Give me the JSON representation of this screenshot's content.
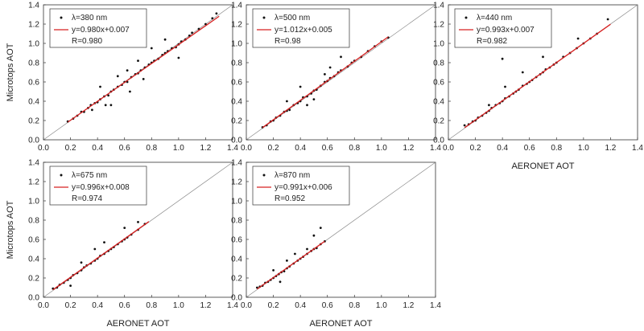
{
  "layout_note_free": true,
  "shared": {
    "xlabel": "AERONET AOT",
    "ylabel": "Microtops AOT",
    "ticks": [
      "0.0",
      "0.2",
      "0.4",
      "0.6",
      "0.8",
      "1.0",
      "1.2",
      "1.4"
    ],
    "point_color": "#111111",
    "fit_color": "#d62020",
    "ref_color": "#888888"
  },
  "chart_data": [
    {
      "type": "scatter",
      "xlabel": "",
      "ylabel": "Microtops AOT",
      "xlim": [
        0,
        1.4
      ],
      "ylim": [
        0,
        1.4
      ],
      "legend": {
        "placement": "top-left",
        "series": "λ=380 nm",
        "fit": "y=0.980x+0.007",
        "r": "R=0.980"
      },
      "fit": {
        "slope": 0.98,
        "intercept": 0.007,
        "xrange": [
          0.18,
          1.3
        ]
      },
      "series": [
        {
          "name": "λ=380 nm",
          "x": [
            0.18,
            0.22,
            0.25,
            0.28,
            0.3,
            0.33,
            0.35,
            0.38,
            0.4,
            0.42,
            0.45,
            0.48,
            0.5,
            0.52,
            0.55,
            0.58,
            0.6,
            0.62,
            0.65,
            0.68,
            0.7,
            0.72,
            0.75,
            0.78,
            0.8,
            0.82,
            0.85,
            0.88,
            0.9,
            0.92,
            0.95,
            0.98,
            1.0,
            1.02,
            1.05,
            1.08,
            1.1,
            1.15,
            1.2,
            1.25,
            1.28,
            0.36,
            0.42,
            0.5,
            0.62,
            0.74,
            0.9,
            1.0,
            0.55,
            0.8,
            0.64,
            0.46,
            0.7
          ],
          "y": [
            0.19,
            0.22,
            0.25,
            0.29,
            0.29,
            0.33,
            0.36,
            0.38,
            0.39,
            0.42,
            0.45,
            0.46,
            0.5,
            0.52,
            0.55,
            0.57,
            0.6,
            0.6,
            0.65,
            0.68,
            0.69,
            0.72,
            0.75,
            0.78,
            0.8,
            0.82,
            0.84,
            0.88,
            0.9,
            0.92,
            0.95,
            0.96,
            0.99,
            1.02,
            1.04,
            1.08,
            1.11,
            1.15,
            1.2,
            1.26,
            1.31,
            0.31,
            0.55,
            0.36,
            0.72,
            0.63,
            1.04,
            0.85,
            0.66,
            0.95,
            0.5,
            0.36,
            0.82
          ]
        }
      ]
    },
    {
      "type": "scatter",
      "xlabel": "",
      "ylabel": "",
      "xlim": [
        0,
        1.4
      ],
      "ylim": [
        0,
        1.4
      ],
      "legend": {
        "placement": "top-left",
        "series": "λ=500 nm",
        "fit": "y=1.012x+0.005",
        "r": "R=0.98"
      },
      "fit": {
        "slope": 1.012,
        "intercept": 0.005,
        "xrange": [
          0.12,
          1.05
        ]
      },
      "series": [
        {
          "name": "λ=500 nm",
          "x": [
            0.12,
            0.15,
            0.18,
            0.2,
            0.22,
            0.25,
            0.28,
            0.3,
            0.32,
            0.35,
            0.38,
            0.4,
            0.42,
            0.45,
            0.48,
            0.5,
            0.52,
            0.55,
            0.58,
            0.6,
            0.62,
            0.65,
            0.68,
            0.7,
            0.75,
            0.78,
            0.8,
            0.85,
            0.9,
            0.95,
            1.0,
            1.05,
            0.3,
            0.4,
            0.5,
            0.62,
            0.7,
            0.45,
            0.58
          ],
          "y": [
            0.13,
            0.15,
            0.19,
            0.2,
            0.23,
            0.25,
            0.29,
            0.3,
            0.31,
            0.36,
            0.38,
            0.4,
            0.44,
            0.45,
            0.48,
            0.51,
            0.52,
            0.56,
            0.6,
            0.61,
            0.64,
            0.66,
            0.7,
            0.72,
            0.76,
            0.8,
            0.82,
            0.86,
            0.92,
            0.97,
            1.02,
            1.06,
            0.4,
            0.55,
            0.42,
            0.75,
            0.86,
            0.36,
            0.68
          ]
        }
      ]
    },
    {
      "type": "scatter",
      "xlabel": "AERONET AOT",
      "ylabel": "",
      "xlim": [
        0,
        1.4
      ],
      "ylim": [
        0,
        1.4
      ],
      "legend": {
        "placement": "top-left",
        "series": "λ=440 nm",
        "fit": "y=0.993x+0.007",
        "r": "R=0.982"
      },
      "fit": {
        "slope": 0.993,
        "intercept": 0.007,
        "xrange": [
          0.12,
          1.2
        ]
      },
      "series": [
        {
          "name": "λ=440 nm",
          "x": [
            0.12,
            0.15,
            0.18,
            0.2,
            0.22,
            0.25,
            0.28,
            0.3,
            0.32,
            0.35,
            0.38,
            0.4,
            0.42,
            0.45,
            0.48,
            0.5,
            0.52,
            0.55,
            0.58,
            0.6,
            0.62,
            0.65,
            0.68,
            0.7,
            0.72,
            0.75,
            0.78,
            0.8,
            0.85,
            0.9,
            0.95,
            1.0,
            1.05,
            1.1,
            1.18,
            0.3,
            0.42,
            0.55,
            0.7,
            0.96,
            0.4
          ],
          "y": [
            0.15,
            0.16,
            0.19,
            0.2,
            0.23,
            0.25,
            0.28,
            0.3,
            0.33,
            0.36,
            0.38,
            0.4,
            0.43,
            0.45,
            0.48,
            0.5,
            0.52,
            0.56,
            0.58,
            0.6,
            0.62,
            0.65,
            0.68,
            0.7,
            0.73,
            0.75,
            0.78,
            0.8,
            0.86,
            0.9,
            0.95,
            1.0,
            1.05,
            1.1,
            1.25,
            0.36,
            0.55,
            0.7,
            0.86,
            1.05,
            0.84
          ]
        }
      ]
    },
    {
      "type": "scatter",
      "xlabel": "",
      "ylabel": "Microtops AOT",
      "xlim": [
        0,
        1.4
      ],
      "ylim": [
        0,
        1.4
      ],
      "legend": {
        "placement": "top-left",
        "series": "λ=675 nm",
        "fit": "y=0.996x+0.008",
        "r": "R=0.974"
      },
      "fit": {
        "slope": 0.996,
        "intercept": 0.008,
        "xrange": [
          0.07,
          0.78
        ]
      },
      "series": [
        {
          "name": "λ=675 nm",
          "x": [
            0.07,
            0.1,
            0.12,
            0.15,
            0.18,
            0.2,
            0.22,
            0.25,
            0.28,
            0.3,
            0.32,
            0.35,
            0.38,
            0.4,
            0.42,
            0.45,
            0.48,
            0.5,
            0.52,
            0.55,
            0.58,
            0.6,
            0.62,
            0.65,
            0.7,
            0.75,
            0.28,
            0.38,
            0.45,
            0.6,
            0.7,
            0.2
          ],
          "y": [
            0.09,
            0.1,
            0.13,
            0.15,
            0.18,
            0.2,
            0.23,
            0.25,
            0.28,
            0.31,
            0.33,
            0.35,
            0.38,
            0.4,
            0.43,
            0.45,
            0.48,
            0.5,
            0.52,
            0.55,
            0.58,
            0.6,
            0.62,
            0.65,
            0.7,
            0.76,
            0.36,
            0.5,
            0.57,
            0.72,
            0.78,
            0.12
          ]
        }
      ]
    },
    {
      "type": "scatter",
      "xlabel": "AERONET AOT",
      "ylabel": "",
      "xlim": [
        0,
        1.4
      ],
      "ylim": [
        0,
        1.4
      ],
      "legend": {
        "placement": "top-left",
        "series": "λ=870 nm",
        "fit": "y=0.991x+0.006",
        "r": "R=0.952"
      },
      "fit": {
        "slope": 0.991,
        "intercept": 0.006,
        "xrange": [
          0.08,
          0.58
        ]
      },
      "series": [
        {
          "name": "λ=870 nm",
          "x": [
            0.08,
            0.1,
            0.12,
            0.14,
            0.16,
            0.18,
            0.2,
            0.22,
            0.24,
            0.26,
            0.28,
            0.3,
            0.32,
            0.35,
            0.38,
            0.4,
            0.42,
            0.45,
            0.48,
            0.5,
            0.52,
            0.55,
            0.58,
            0.2,
            0.3,
            0.36,
            0.45,
            0.5,
            0.55,
            0.25
          ],
          "y": [
            0.1,
            0.11,
            0.12,
            0.15,
            0.16,
            0.18,
            0.2,
            0.22,
            0.24,
            0.26,
            0.27,
            0.3,
            0.32,
            0.35,
            0.38,
            0.4,
            0.42,
            0.45,
            0.48,
            0.5,
            0.51,
            0.55,
            0.58,
            0.28,
            0.38,
            0.45,
            0.5,
            0.64,
            0.72,
            0.16
          ]
        }
      ]
    }
  ]
}
